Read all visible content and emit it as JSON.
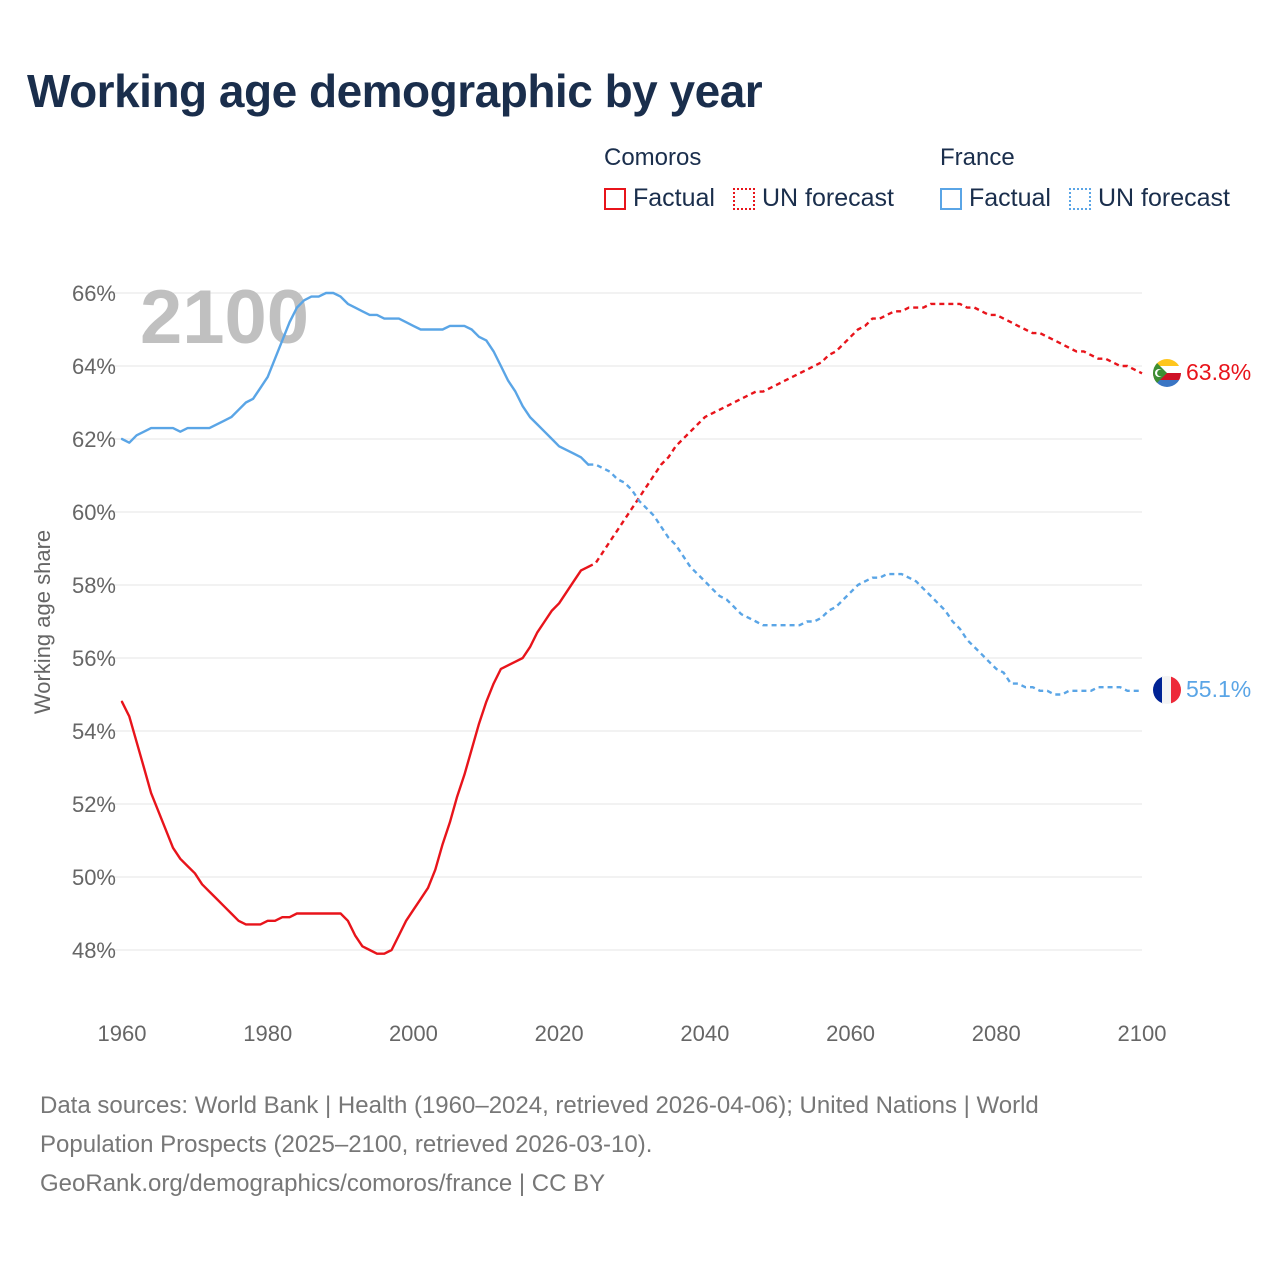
{
  "colors": {
    "comoros": "#e8141b",
    "france": "#5aa5e6",
    "title": "#1a2e4c",
    "axis": "#666666",
    "grid": "#e6e6e6",
    "year": "#c0c0c0"
  },
  "legend": {
    "groups": [
      {
        "name": "Comoros",
        "factual": "Factual",
        "forecast": "UN forecast",
        "color": "#e8141b"
      },
      {
        "name": "France",
        "factual": "Factual",
        "forecast": "UN forecast",
        "color": "#5aa5e6"
      }
    ]
  },
  "footer": {
    "line1": "Data sources: World Bank | Health (1960–2024, retrieved 2026-04-06); United Nations | World",
    "line2": "Population Prospects (2025–2100, retrieved 2026-03-10).",
    "line3": "GeoRank.org/demographics/comoros/france | CC BY"
  },
  "chart_data": {
    "type": "line",
    "title": "Working age demographic by year",
    "ylabel": "Working age share",
    "xlabel": "",
    "year_label": "2100",
    "xlim": [
      1960,
      2100
    ],
    "ylim": [
      47,
      66.5
    ],
    "x_ticks": [
      1960,
      1980,
      2000,
      2020,
      2040,
      2060,
      2080,
      2100
    ],
    "y_ticks": [
      48,
      50,
      52,
      54,
      56,
      58,
      60,
      62,
      64,
      66
    ],
    "y_tick_labels": [
      "48%",
      "50%",
      "52%",
      "54%",
      "56%",
      "58%",
      "60%",
      "62%",
      "64%",
      "66%"
    ],
    "grid": true,
    "series": [
      {
        "name": "Comoros",
        "color": "#e8141b",
        "end_label": "63.8%",
        "factual": {
          "x": [
            1960,
            1961,
            1962,
            1963,
            1964,
            1965,
            1966,
            1967,
            1968,
            1969,
            1970,
            1971,
            1972,
            1973,
            1974,
            1975,
            1976,
            1977,
            1978,
            1979,
            1980,
            1981,
            1982,
            1983,
            1984,
            1985,
            1986,
            1987,
            1988,
            1989,
            1990,
            1991,
            1992,
            1993,
            1994,
            1995,
            1996,
            1997,
            1998,
            1999,
            2000,
            2001,
            2002,
            2003,
            2004,
            2005,
            2006,
            2007,
            2008,
            2009,
            2010,
            2011,
            2012,
            2013,
            2014,
            2015,
            2016,
            2017,
            2018,
            2019,
            2020,
            2021,
            2022,
            2023,
            2024
          ],
          "y": [
            54.8,
            54.4,
            53.7,
            53.0,
            52.3,
            51.8,
            51.3,
            50.8,
            50.5,
            50.3,
            50.1,
            49.8,
            49.6,
            49.4,
            49.2,
            49.0,
            48.8,
            48.7,
            48.7,
            48.7,
            48.8,
            48.8,
            48.9,
            48.9,
            49.0,
            49.0,
            49.0,
            49.0,
            49.0,
            49.0,
            49.0,
            48.8,
            48.4,
            48.1,
            48.0,
            47.9,
            47.9,
            48.0,
            48.4,
            48.8,
            49.1,
            49.4,
            49.7,
            50.2,
            50.9,
            51.5,
            52.2,
            52.8,
            53.5,
            54.2,
            54.8,
            55.3,
            55.7,
            55.8,
            55.9,
            56.0,
            56.3,
            56.7,
            57.0,
            57.3,
            57.5,
            57.8,
            58.1,
            58.4,
            58.5
          ]
        },
        "forecast": {
          "x": [
            2024,
            2025,
            2026,
            2027,
            2028,
            2029,
            2030,
            2031,
            2032,
            2033,
            2034,
            2035,
            2036,
            2037,
            2038,
            2039,
            2040,
            2041,
            2042,
            2043,
            2044,
            2045,
            2046,
            2047,
            2048,
            2049,
            2050,
            2051,
            2052,
            2053,
            2054,
            2055,
            2056,
            2057,
            2058,
            2059,
            2060,
            2061,
            2062,
            2063,
            2064,
            2065,
            2066,
            2067,
            2068,
            2069,
            2070,
            2071,
            2072,
            2073,
            2074,
            2075,
            2076,
            2077,
            2078,
            2079,
            2080,
            2081,
            2082,
            2083,
            2084,
            2085,
            2086,
            2087,
            2088,
            2089,
            2090,
            2091,
            2092,
            2093,
            2094,
            2095,
            2096,
            2097,
            2098,
            2099,
            2100
          ],
          "y": [
            58.5,
            58.6,
            58.9,
            59.2,
            59.5,
            59.8,
            60.1,
            60.4,
            60.7,
            61.0,
            61.3,
            61.5,
            61.8,
            62.0,
            62.2,
            62.4,
            62.6,
            62.7,
            62.8,
            62.9,
            63.0,
            63.1,
            63.2,
            63.3,
            63.3,
            63.4,
            63.5,
            63.6,
            63.7,
            63.8,
            63.9,
            64.0,
            64.1,
            64.3,
            64.4,
            64.6,
            64.8,
            65.0,
            65.1,
            65.3,
            65.3,
            65.4,
            65.5,
            65.5,
            65.6,
            65.6,
            65.6,
            65.7,
            65.7,
            65.7,
            65.7,
            65.7,
            65.6,
            65.6,
            65.5,
            65.4,
            65.4,
            65.3,
            65.2,
            65.1,
            65.0,
            64.9,
            64.9,
            64.8,
            64.7,
            64.6,
            64.5,
            64.4,
            64.4,
            64.3,
            64.2,
            64.2,
            64.1,
            64.0,
            64.0,
            63.9,
            63.8
          ]
        }
      },
      {
        "name": "France",
        "color": "#5aa5e6",
        "end_label": "55.1%",
        "factual": {
          "x": [
            1960,
            1961,
            1962,
            1963,
            1964,
            1965,
            1966,
            1967,
            1968,
            1969,
            1970,
            1971,
            1972,
            1973,
            1974,
            1975,
            1976,
            1977,
            1978,
            1979,
            1980,
            1981,
            1982,
            1983,
            1984,
            1985,
            1986,
            1987,
            1988,
            1989,
            1990,
            1991,
            1992,
            1993,
            1994,
            1995,
            1996,
            1997,
            1998,
            1999,
            2000,
            2001,
            2002,
            2003,
            2004,
            2005,
            2006,
            2007,
            2008,
            2009,
            2010,
            2011,
            2012,
            2013,
            2014,
            2015,
            2016,
            2017,
            2018,
            2019,
            2020,
            2021,
            2022,
            2023,
            2024
          ],
          "y": [
            62.0,
            61.9,
            62.1,
            62.2,
            62.3,
            62.3,
            62.3,
            62.3,
            62.2,
            62.3,
            62.3,
            62.3,
            62.3,
            62.4,
            62.5,
            62.6,
            62.8,
            63.0,
            63.1,
            63.4,
            63.7,
            64.2,
            64.7,
            65.2,
            65.6,
            65.8,
            65.9,
            65.9,
            66.0,
            66.0,
            65.9,
            65.7,
            65.6,
            65.5,
            65.4,
            65.4,
            65.3,
            65.3,
            65.3,
            65.2,
            65.1,
            65.0,
            65.0,
            65.0,
            65.0,
            65.1,
            65.1,
            65.1,
            65.0,
            64.8,
            64.7,
            64.4,
            64.0,
            63.6,
            63.3,
            62.9,
            62.6,
            62.4,
            62.2,
            62.0,
            61.8,
            61.7,
            61.6,
            61.5,
            61.3
          ]
        },
        "forecast": {
          "x": [
            2024,
            2025,
            2026,
            2027,
            2028,
            2029,
            2030,
            2031,
            2032,
            2033,
            2034,
            2035,
            2036,
            2037,
            2038,
            2039,
            2040,
            2041,
            2042,
            2043,
            2044,
            2045,
            2046,
            2047,
            2048,
            2049,
            2050,
            2051,
            2052,
            2053,
            2054,
            2055,
            2056,
            2057,
            2058,
            2059,
            2060,
            2061,
            2062,
            2063,
            2064,
            2065,
            2066,
            2067,
            2068,
            2069,
            2070,
            2071,
            2072,
            2073,
            2074,
            2075,
            2076,
            2077,
            2078,
            2079,
            2080,
            2081,
            2082,
            2083,
            2084,
            2085,
            2086,
            2087,
            2088,
            2089,
            2090,
            2091,
            2092,
            2093,
            2094,
            2095,
            2096,
            2097,
            2098,
            2099,
            2100
          ],
          "y": [
            61.3,
            61.3,
            61.2,
            61.1,
            60.9,
            60.8,
            60.6,
            60.3,
            60.1,
            59.9,
            59.6,
            59.3,
            59.1,
            58.8,
            58.5,
            58.3,
            58.1,
            57.9,
            57.7,
            57.6,
            57.4,
            57.2,
            57.1,
            57.0,
            56.9,
            56.9,
            56.9,
            56.9,
            56.9,
            56.9,
            57.0,
            57.0,
            57.1,
            57.3,
            57.4,
            57.6,
            57.8,
            58.0,
            58.1,
            58.2,
            58.2,
            58.3,
            58.3,
            58.3,
            58.2,
            58.1,
            57.9,
            57.7,
            57.5,
            57.3,
            57.0,
            56.8,
            56.5,
            56.3,
            56.1,
            55.9,
            55.7,
            55.6,
            55.3,
            55.3,
            55.2,
            55.2,
            55.1,
            55.1,
            55.0,
            55.0,
            55.1,
            55.1,
            55.1,
            55.1,
            55.2,
            55.2,
            55.2,
            55.2,
            55.1,
            55.1,
            55.1
          ]
        }
      }
    ]
  }
}
